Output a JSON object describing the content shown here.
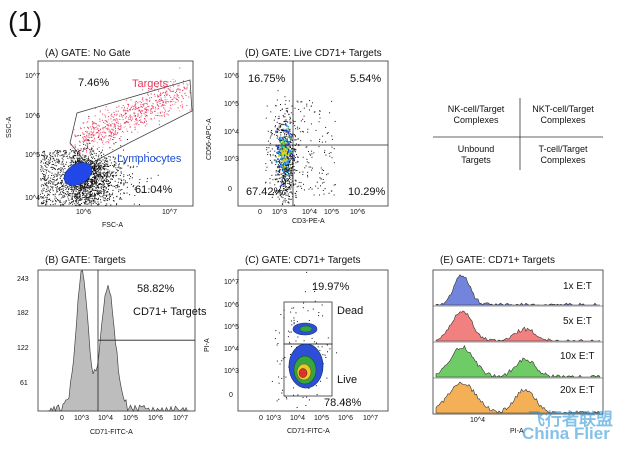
{
  "figure_label": "(1)",
  "watermark": {
    "cn": "飞行者联盟",
    "en": "China Flier"
  },
  "chart_data": [
    {
      "id": "A",
      "type": "scatter",
      "title": "(A) GATE: No Gate",
      "xlabel": "FSC-A",
      "ylabel": "SSC-A",
      "xticks": [
        "10^6",
        "10^7"
      ],
      "yticks": [
        "10^4",
        "10^5",
        "10^6",
        "10^7"
      ],
      "gates": [
        {
          "name": "Targets",
          "color": "#e8385e",
          "percent": "7.46%"
        },
        {
          "name": "Lymphocytes",
          "color": "#1d4ed8",
          "percent": "61.04%"
        }
      ],
      "corner_label_top": "7.46%",
      "corner_label_bottom": "61.04%",
      "label_targets": "Targets",
      "label_lymph": "Lymphocytes"
    },
    {
      "id": "D",
      "type": "scatter",
      "title": "(D) GATE: Live CD71+ Targets",
      "xlabel": "CD3-PE-A",
      "ylabel": "CD56-APC-A",
      "xticks": [
        "0",
        "10^3",
        "10^4",
        "10^5",
        "10^6"
      ],
      "yticks": [
        "0",
        "10^3",
        "10^4",
        "10^5",
        "10^6"
      ],
      "quadrants": {
        "top_left": "16.75%",
        "top_right": "5.54%",
        "bottom_left": "67.42%",
        "bottom_right": "10.29%"
      }
    },
    {
      "id": "B",
      "type": "histogram",
      "title": "(B) GATE: Targets",
      "xlabel": "CD71-FITC-A",
      "ylabel": "",
      "yticks": [
        61,
        122,
        182,
        243
      ],
      "ylim": [
        0,
        243
      ],
      "xticks": [
        "0",
        "10^3",
        "10^4",
        "10^5",
        "10^6",
        "10^7"
      ],
      "gate_percent": "58.82%",
      "gate_label": "CD71+ Targets",
      "threshold_y": 122
    },
    {
      "id": "C",
      "type": "contour",
      "title": "(C) GATE: CD71+ Targets",
      "xlabel": "CD71-FITC-A",
      "ylabel": "PI-A",
      "xticks": [
        "0",
        "10^3",
        "10^4",
        "10^5",
        "10^6",
        "10^7"
      ],
      "yticks": [
        "0",
        "10^3",
        "10^4",
        "10^5",
        "10^6",
        "10^7"
      ],
      "regions": [
        {
          "name": "Dead",
          "percent": "19.97%"
        },
        {
          "name": "Live",
          "percent": "78.48%"
        }
      ]
    },
    {
      "id": "E",
      "type": "histogram",
      "title": "(E) GATE: CD71+ Targets",
      "xlabel": "PI-A",
      "series": [
        {
          "name": "1x E:T",
          "color": "#5b6fd6"
        },
        {
          "name": "5x E:T",
          "color": "#ef6b6b"
        },
        {
          "name": "10x E:T",
          "color": "#55c24a"
        },
        {
          "name": "20x E:T",
          "color": "#f2a23a"
        }
      ],
      "xticks": [
        "10^4"
      ]
    }
  ],
  "legend": {
    "top_left": [
      "NK-cell/Target",
      "Complexes"
    ],
    "top_right": [
      "NKT-cell/Target",
      "Complexes"
    ],
    "bottom_left": [
      "Unbound",
      "Targets"
    ],
    "bottom_right": [
      "T-cell/Target",
      "Complexes"
    ]
  }
}
